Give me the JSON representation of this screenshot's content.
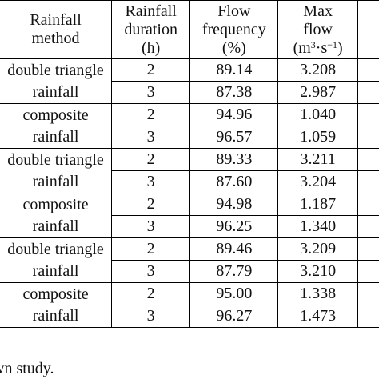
{
  "table": {
    "headers": [
      {
        "lines": [
          "Rainfall",
          "method"
        ]
      },
      {
        "lines": [
          "Rainfall",
          "duration",
          "(h)"
        ]
      },
      {
        "lines": [
          "Flow",
          "frequency",
          "(%)"
        ]
      },
      {
        "lines": [
          "Max",
          "flow"
        ],
        "unit": {
          "base": "(m",
          "sup1": "3",
          "mid": "·s",
          "sup2": "−1",
          "end": ")"
        }
      }
    ],
    "groups": [
      {
        "method_lines": [
          "double triangle",
          "rainfall"
        ],
        "rows": [
          {
            "duration": "2",
            "frequency": "89.14",
            "max_flow": "3.208"
          },
          {
            "duration": "3",
            "frequency": "87.38",
            "max_flow": "2.987"
          }
        ]
      },
      {
        "method_lines": [
          "composite",
          "rainfall"
        ],
        "rows": [
          {
            "duration": "2",
            "frequency": "94.96",
            "max_flow": "1.040"
          },
          {
            "duration": "3",
            "frequency": "96.57",
            "max_flow": "1.059"
          }
        ]
      },
      {
        "method_lines": [
          "double triangle",
          "rainfall"
        ],
        "rows": [
          {
            "duration": "2",
            "frequency": "89.33",
            "max_flow": "3.211"
          },
          {
            "duration": "3",
            "frequency": "87.60",
            "max_flow": "3.204"
          }
        ]
      },
      {
        "method_lines": [
          "composite",
          "rainfall"
        ],
        "rows": [
          {
            "duration": "2",
            "frequency": "94.98",
            "max_flow": "1.187"
          },
          {
            "duration": "3",
            "frequency": "96.25",
            "max_flow": "1.340"
          }
        ]
      },
      {
        "method_lines": [
          "double triangle",
          "rainfall"
        ],
        "rows": [
          {
            "duration": "2",
            "frequency": "89.46",
            "max_flow": "3.209"
          },
          {
            "duration": "3",
            "frequency": "87.79",
            "max_flow": "3.210"
          }
        ]
      },
      {
        "method_lines": [
          "composite",
          "rainfall"
        ],
        "rows": [
          {
            "duration": "2",
            "frequency": "95.00",
            "max_flow": "1.338"
          },
          {
            "duration": "3",
            "frequency": "96.27",
            "max_flow": "1.473"
          }
        ]
      }
    ]
  },
  "source_note": "wn study."
}
